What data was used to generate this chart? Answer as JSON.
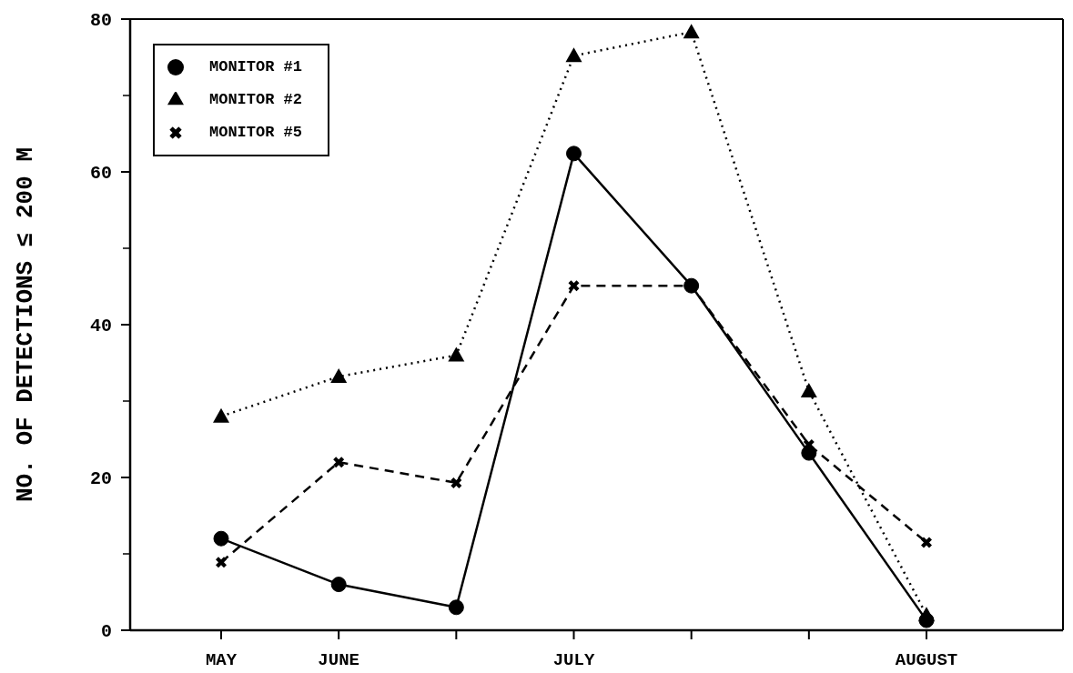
{
  "chart_data": {
    "type": "line",
    "ylabel": "NO. OF DETECTIONS ≤ 200 M",
    "categories": [
      "MAY",
      "JUNE",
      null,
      "JULY",
      null,
      null,
      "AUGUST"
    ],
    "ylim": [
      0,
      80
    ],
    "yticks": [
      0,
      {
        "value": 10,
        "label": null
      },
      20,
      {
        "value": 30,
        "label": null
      },
      40,
      {
        "value": 50,
        "label": null
      },
      60,
      {
        "value": 70,
        "label": null
      },
      80
    ],
    "series": [
      {
        "name": "MONITOR #1",
        "color": "#000000",
        "marker": "circle",
        "line_style": "solid",
        "values": [
          12,
          6,
          3,
          62.4,
          45.1,
          23.2,
          1.3
        ]
      },
      {
        "name": "MONITOR #2",
        "color": "#000000",
        "marker": "triangle",
        "line_style": "dotted",
        "values": [
          28,
          33.2,
          36,
          75.2,
          78.3,
          31.3,
          2
        ]
      },
      {
        "name": "MONITOR #5",
        "color": "#000000",
        "marker": "cross",
        "line_style": "dashed",
        "values": [
          8.9,
          22,
          19.3,
          45.1,
          45.1,
          24.3,
          11.5
        ]
      }
    ],
    "legend": "top left",
    "grid": false
  }
}
